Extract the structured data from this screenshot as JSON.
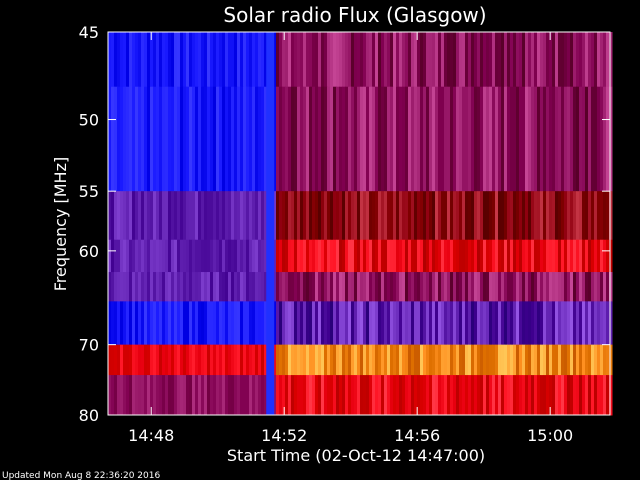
{
  "chart_data": {
    "type": "heatmap",
    "title": "Solar radio Flux (Glasgow)",
    "xlabel": "Start Time (02-Oct-12 14:47:00)",
    "ylabel": "Frequency [MHz]",
    "x_ticks": [
      "14:48",
      "14:52",
      "14:56",
      "15:00"
    ],
    "x_tick_minutes": [
      48,
      52,
      56,
      60
    ],
    "x_range_minutes": [
      46.7,
      61.8
    ],
    "y_ticks": [
      "45",
      "50",
      "55",
      "60",
      "70",
      "80"
    ],
    "y_tick_values": [
      45,
      50,
      55,
      60,
      70,
      80
    ],
    "y_range": [
      45,
      80
    ],
    "y_scale": "reciprocal",
    "burst_onset_minute": 51.7,
    "bands": [
      {
        "from": 45,
        "to": 48,
        "before_burst": "blue",
        "after_burst": "purple-red"
      },
      {
        "from": 48,
        "to": 55,
        "before_burst": "blue",
        "after_burst": "purple-red"
      },
      {
        "from": 55,
        "to": 59,
        "before_burst": "purple",
        "after_burst": "dark-red"
      },
      {
        "from": 59,
        "to": 62,
        "before_burst": "purple",
        "after_burst": "red"
      },
      {
        "from": 62,
        "to": 65,
        "before_burst": "purple",
        "after_burst": "purple-red"
      },
      {
        "from": 65,
        "to": 70,
        "before_burst": "blue",
        "after_burst": "purple"
      },
      {
        "from": 70,
        "to": 74,
        "before_burst": "red",
        "after_burst": "orange-yellow"
      },
      {
        "from": 74,
        "to": 80,
        "before_burst": "purple-red",
        "after_burst": "red"
      }
    ],
    "colors": {
      "blue": "#1a1aff",
      "purple": "#6020b0",
      "purple-red": "#901060",
      "dark-red": "#900010",
      "red": "#e80010",
      "orange-yellow": "#ff9020",
      "burst_line": "#2030ff"
    }
  },
  "footer": "Updated Mon Aug  8 22:36:20 2016"
}
